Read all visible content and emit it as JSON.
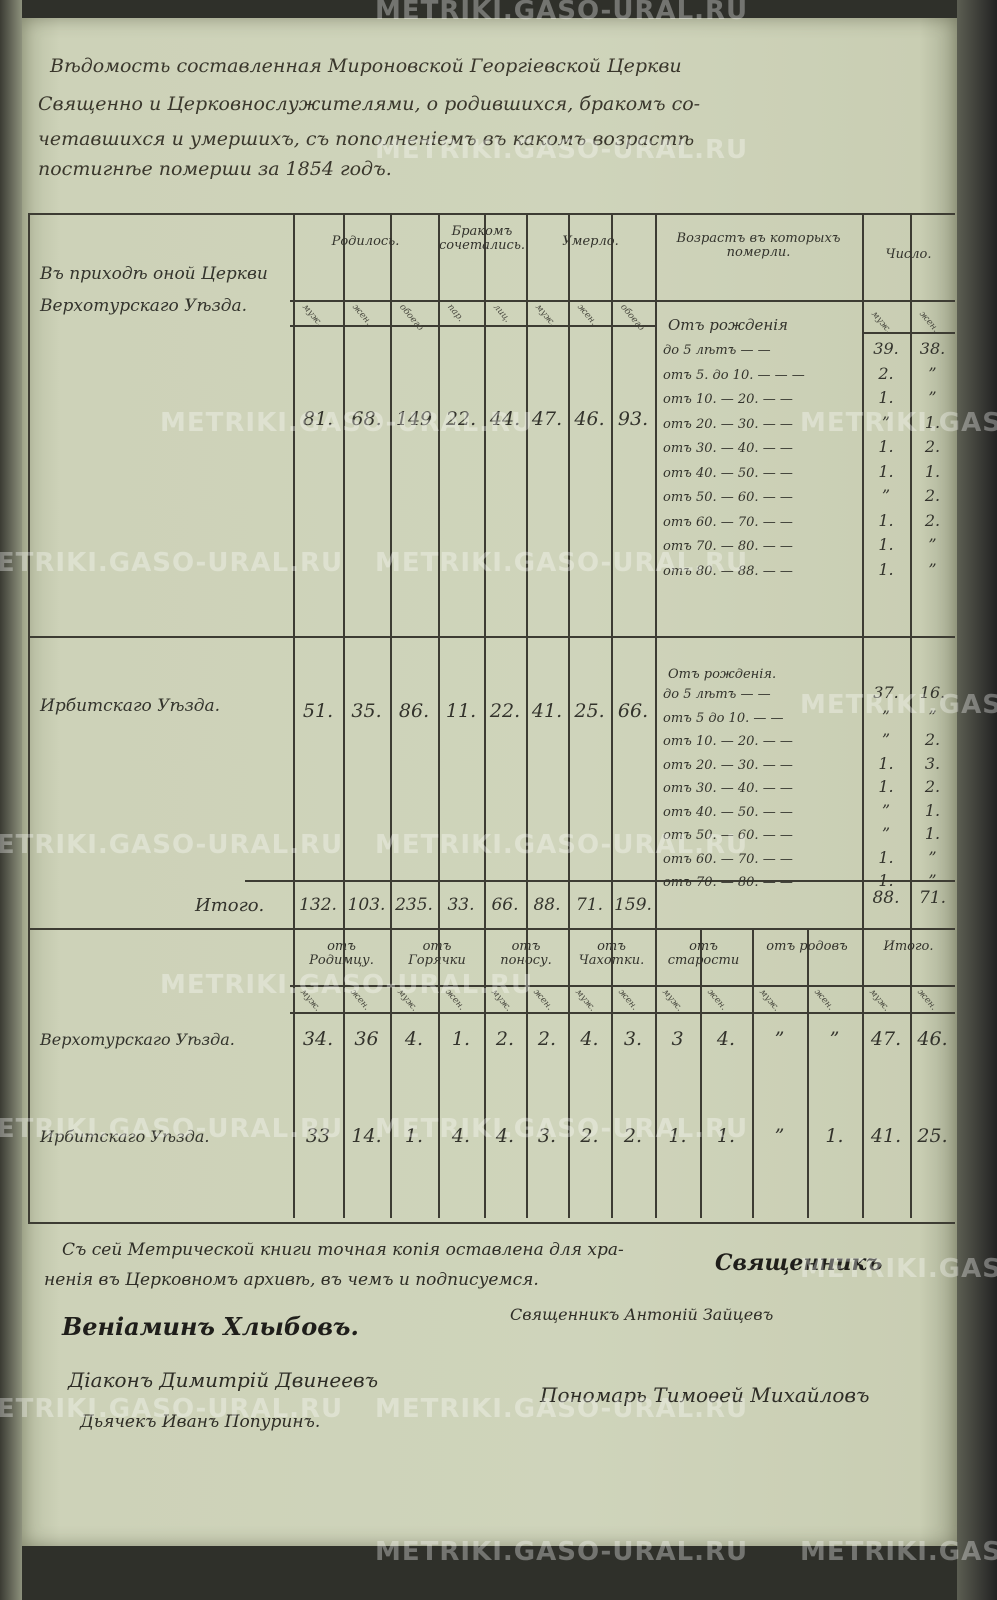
{
  "document": {
    "title_lines": [
      "Вѣдомость составленная Мироновской Георгіевской Церкви",
      "Священно и Церковнослужителями, о родившихся, бракомъ со-",
      "четавшихся и умершихъ, съ пополненіемъ въ какомъ возрастѣ",
      "постигнѣе померши за 1854 годъ."
    ],
    "watermark": "METRIKI.GASO-URAL.RU"
  },
  "table1": {
    "headers": {
      "born": "Родилось.",
      "married": "Бракомъ сочетались.",
      "died": "Умерло.",
      "ages": "Возрастъ въ которыхъ померли.",
      "count": "Число."
    },
    "subheaders": [
      "муж.",
      "жен.",
      "обоего",
      "пар.",
      "лиц.",
      "муж.",
      "жен.",
      "обоего",
      "муж.",
      "жен."
    ],
    "rows": [
      {
        "label": "Въ приходѣ оной Церкви Верхотурскаго Уѣзда.",
        "values": [
          "81.",
          "68.",
          "149",
          "22.",
          "44.",
          "47.",
          "46.",
          "93."
        ],
        "ages_intro": "Отъ рожденія",
        "ages": [
          "до 5 лѣтъ — —",
          "отъ 5. до 10. — — —",
          "отъ 10. — 20. — —",
          "отъ 20. — 30. — —",
          "отъ 30. — 40. — —",
          "отъ 40. — 50. — —",
          "отъ 50. — 60. — —",
          "отъ 60. — 70. — —",
          "отъ 70. — 80. — —",
          "отъ 80. — 88. — —"
        ],
        "male": [
          "39.",
          "2.",
          "1.",
          "”",
          "1.",
          "1.",
          "”",
          "1.",
          "1.",
          "1."
        ],
        "female": [
          "38.",
          "”",
          "”",
          "1.",
          "2.",
          "1.",
          "2.",
          "2.",
          "”",
          "”"
        ]
      },
      {
        "label": "Ирбитскаго Уѣзда.",
        "values": [
          "51.",
          "35.",
          "86.",
          "11.",
          "22.",
          "41.",
          "25.",
          "66."
        ],
        "ages_intro": "Отъ рожденія.",
        "ages": [
          "до 5 лѣтъ — —",
          "отъ 5 до 10. — —",
          "отъ 10. — 20. — —",
          "отъ 20. — 30. — —",
          "отъ 30. — 40. — —",
          "отъ 40. — 50. — —",
          "отъ 50. — 60. — —",
          "отъ 60. — 70. — —",
          "отъ 70. — 80. — —"
        ],
        "male": [
          "37.",
          "”",
          "”",
          "1.",
          "1.",
          "”",
          "”",
          "1.",
          "1."
        ],
        "female": [
          "16.",
          "”",
          "2.",
          "3.",
          "2.",
          "1.",
          "1.",
          "”",
          "”"
        ]
      }
    ],
    "total": {
      "label": "Итого.",
      "values": [
        "132.",
        "103.",
        "235.",
        "33.",
        "66.",
        "88.",
        "71.",
        "159."
      ],
      "male": "88.",
      "female": "71."
    }
  },
  "table2": {
    "headers": [
      "отъ Родимцу.",
      "отъ Горячки",
      "отъ поносу.",
      "отъ Чахотки.",
      "отъ старости",
      "отъ родовъ",
      "Итого."
    ],
    "subheaders": [
      "муж.",
      "жен.",
      "муж.",
      "жен.",
      "муж.",
      "жен.",
      "муж.",
      "жен.",
      "муж.",
      "жен.",
      "муж.",
      "жен.",
      "муж.",
      "жен."
    ],
    "rows": [
      {
        "label": "Верхотурскаго Уѣзда.",
        "values": [
          "34.",
          "36",
          "4.",
          "1.",
          "2.",
          "2.",
          "4.",
          "3.",
          "3",
          "4.",
          "”",
          "”",
          "47.",
          "46."
        ]
      },
      {
        "label": "Ирбитскаго Уѣзда.",
        "values": [
          "33",
          "14.",
          "1.",
          "4.",
          "4.",
          "3.",
          "2.",
          "2.",
          "1.",
          "1.",
          "”",
          "1.",
          "41.",
          "25."
        ]
      }
    ]
  },
  "footer": {
    "line1": "Съ сей Метрической книги точная копія оставлена для хра-",
    "line2": "ненія въ Церковномъ архивѣ, въ чемъ и подписуемся.",
    "priest_title": "Священникъ",
    "priest_name": "Веніаминъ Хлыбовъ.",
    "priest2": "Священникъ Антоній Зайцевъ",
    "deacon": "Діаконъ Димитрій Двинеевъ",
    "sexton": "Пономарь Тимоѳей Михайловъ",
    "clerk": "Дьячекъ Иванъ Попуринъ."
  }
}
